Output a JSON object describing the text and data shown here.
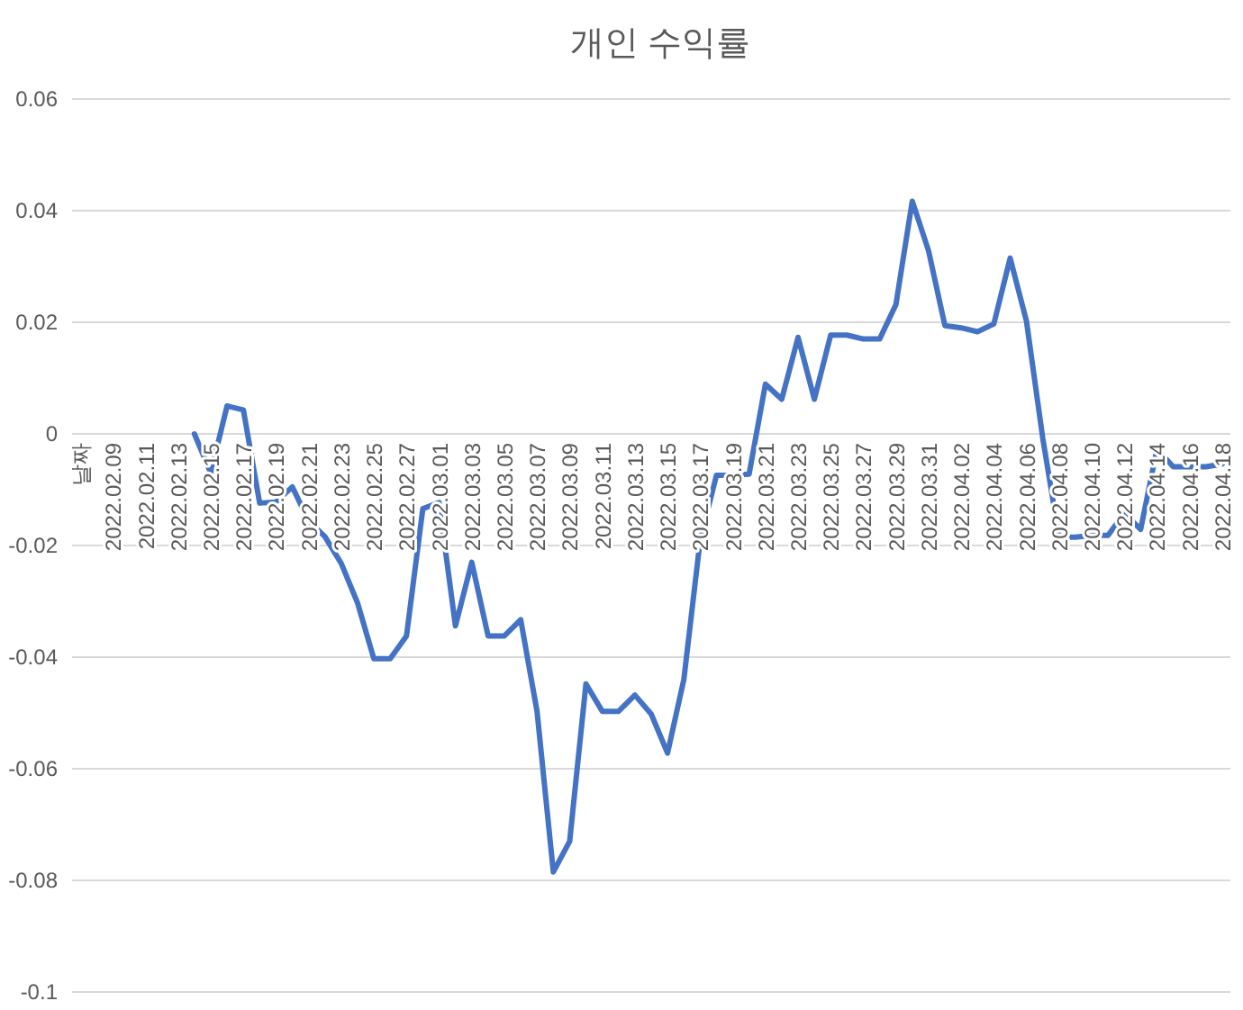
{
  "chart_data": {
    "type": "line",
    "title": "개인 수익률",
    "categories": [
      "날짜",
      null,
      "2022.02.09",
      null,
      "2022.02.11",
      null,
      "2022.02.13",
      null,
      "2022.02.15",
      null,
      "2022.02.17",
      null,
      "2022.02.19",
      null,
      "2022.02.21",
      null,
      "2022.02.23",
      null,
      "2022.02.25",
      null,
      "2022.02.27",
      null,
      "2022.03.01",
      null,
      "2022.03.03",
      null,
      "2022.03.05",
      null,
      "2022.03.07",
      null,
      "2022.03.09",
      null,
      "2022.03.11",
      null,
      "2022.03.13",
      null,
      "2022.03.15",
      null,
      "2022.03.17",
      null,
      "2022.03.19",
      null,
      "2022.03.21",
      null,
      "2022.03.23",
      null,
      "2022.03.25",
      null,
      "2022.03.27",
      null,
      "2022.03.29",
      null,
      "2022.03.31",
      null,
      "2022.04.02",
      null,
      "2022.04.04",
      null,
      "2022.04.06",
      null,
      "2022.04.08",
      null,
      "2022.04.10",
      null,
      "2022.04.12",
      null,
      "2022.04.14",
      null,
      "2022.04.16",
      null,
      "2022.04.18"
    ],
    "series": [
      {
        "color": "#4472c4",
        "values": [
          null,
          null,
          null,
          null,
          null,
          null,
          null,
          0,
          -0.007,
          0.005,
          0.0043,
          -0.0124,
          -0.0122,
          -0.0095,
          -0.0156,
          -0.0184,
          -0.0232,
          -0.0303,
          -0.0403,
          -0.0403,
          -0.0362,
          -0.0134,
          -0.0123,
          -0.0344,
          -0.023,
          -0.0362,
          -0.0362,
          -0.0333,
          -0.0497,
          -0.0785,
          -0.073,
          -0.0448,
          -0.0497,
          -0.0497,
          -0.0468,
          -0.0502,
          -0.0572,
          -0.044,
          -0.019,
          -0.0074,
          -0.0074,
          -0.0072,
          0.0089,
          0.0062,
          0.0173,
          0.0062,
          0.0177,
          0.0177,
          0.017,
          0.017,
          0.0232,
          0.0417,
          0.0328,
          0.0194,
          0.019,
          0.0183,
          0.0197,
          0.0315,
          0.0202,
          -0.0008,
          -0.0185,
          -0.0185,
          -0.0182,
          -0.0182,
          -0.0142,
          -0.0171,
          -0.0027,
          -0.0059,
          -0.0059,
          -0.0059,
          -0.0054
        ]
      }
    ],
    "ylim": [
      -0.1,
      0.06
    ],
    "yticks": [
      -0.1,
      -0.08,
      -0.06,
      -0.04,
      -0.02,
      0,
      0.02,
      0.04,
      0.06
    ],
    "grid": "y",
    "marker": "none",
    "line_style": "solid"
  }
}
